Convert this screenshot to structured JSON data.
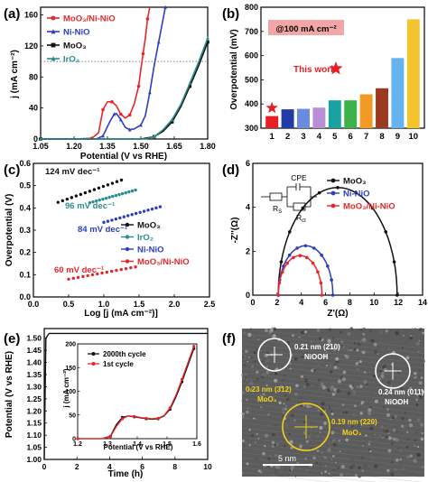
{
  "chart_data": [
    {
      "panel": "(a)",
      "type": "line",
      "xlabel": "Potential (V vs RHE)",
      "ylabel": "j (mA cm⁻²)",
      "xlim": [
        1.05,
        1.8
      ],
      "ylim": [
        0,
        170
      ],
      "xticks": [
        "1.05",
        "1.20",
        "1.35",
        "1.50",
        "1.65",
        "1.80"
      ],
      "yticks": [
        "0",
        "40",
        "80",
        "120",
        "160"
      ],
      "reference_line": 100,
      "legend_position": "top-left",
      "series": [
        {
          "name": "MoO₃/Ni-NiO",
          "color": "#e8262a",
          "marker": "circle",
          "x": [
            1.05,
            1.2,
            1.28,
            1.31,
            1.33,
            1.35,
            1.37,
            1.39,
            1.41,
            1.43,
            1.45,
            1.47,
            1.49,
            1.5,
            1.51,
            1.52,
            1.53,
            1.54
          ],
          "y": [
            0,
            0,
            1,
            8,
            38,
            48,
            48,
            43,
            32,
            27,
            31,
            45,
            68,
            90,
            110,
            130,
            155,
            170
          ]
        },
        {
          "name": "Ni-NiO",
          "color": "#2b3ec2",
          "marker": "triangle",
          "x": [
            1.05,
            1.3,
            1.33,
            1.36,
            1.38,
            1.39,
            1.41,
            1.43,
            1.45,
            1.47,
            1.5,
            1.52,
            1.54,
            1.56,
            1.58,
            1.6,
            1.61
          ],
          "y": [
            0,
            0,
            4,
            22,
            32,
            33,
            25,
            15,
            12,
            13,
            18,
            30,
            60,
            95,
            125,
            155,
            170
          ]
        },
        {
          "name": "MoO₃",
          "color": "#111111",
          "marker": "square",
          "x": [
            1.05,
            1.5,
            1.56,
            1.6,
            1.64,
            1.68,
            1.72,
            1.76,
            1.8
          ],
          "y": [
            0,
            0,
            3,
            10,
            22,
            42,
            68,
            95,
            125
          ]
        },
        {
          "name": "IrO₂",
          "color": "#2a8d8d",
          "marker": "triangle",
          "x": [
            1.05,
            1.52,
            1.56,
            1.6,
            1.64,
            1.68,
            1.72,
            1.76,
            1.8
          ],
          "y": [
            0,
            0,
            3,
            12,
            25,
            45,
            72,
            100,
            130
          ]
        }
      ]
    },
    {
      "panel": "(b)",
      "type": "bar",
      "ylabel": "Overpotential (mV)",
      "annotation": "@100 mA cm⁻²",
      "annotation_color": "#f4a6a6",
      "highlight_label": "This work",
      "ylim": [
        300,
        800
      ],
      "yticks": [
        "300",
        "400",
        "500",
        "600",
        "700",
        "800"
      ],
      "categories": [
        "1",
        "2",
        "3",
        "4",
        "5",
        "6",
        "7",
        "8",
        "9",
        "10"
      ],
      "values": [
        350,
        378,
        380,
        385,
        415,
        415,
        440,
        465,
        590,
        750
      ],
      "colors": [
        "#e81e25",
        "#243aa8",
        "#6a8be0",
        "#b98fd8",
        "#1aa1a1",
        "#3bb34a",
        "#f39a25",
        "#9a3b20",
        "#65b4ef",
        "#f4c32d"
      ]
    },
    {
      "panel": "(c)",
      "type": "scatter",
      "xlabel": "Log [j (mA cm⁻²)]",
      "ylabel": "Overpotential (V)",
      "xlim": [
        0.0,
        2.5
      ],
      "ylim": [
        0.0,
        0.6
      ],
      "xticks": [
        "0.0",
        "0.5",
        "1.0",
        "1.5",
        "2.0",
        "2.5"
      ],
      "yticks": [
        "0.0",
        "0.1",
        "0.2",
        "0.3",
        "0.4",
        "0.5",
        "0.6"
      ],
      "legend_position": "bottom-right",
      "series": [
        {
          "name": "MoO₃",
          "color": "#111111",
          "x": [
            0.35,
            1.25
          ],
          "y": [
            0.425,
            0.525
          ],
          "slope_label": "124 mV dec⁻¹"
        },
        {
          "name": "IrO₂",
          "color": "#2a8d8d",
          "x": [
            0.8,
            1.45
          ],
          "y": [
            0.423,
            0.48
          ],
          "slope_label": "96 mV dec⁻¹"
        },
        {
          "name": "Ni-NiO",
          "color": "#2b3ec2",
          "x": [
            1.0,
            1.8
          ],
          "y": [
            0.335,
            0.405
          ],
          "slope_label": "84 mV dec⁻¹"
        },
        {
          "name": "MoO₃/Ni-NiO",
          "color": "#e8262a",
          "x": [
            0.5,
            1.45
          ],
          "y": [
            0.08,
            0.135
          ],
          "slope_label": "60 mV dec⁻¹"
        }
      ]
    },
    {
      "panel": "(d)",
      "type": "line",
      "xlabel": "Z'(Ω)",
      "ylabel": "-Z''(Ω)",
      "xlim": [
        0,
        14
      ],
      "ylim": [
        0,
        6
      ],
      "xticks": [
        "0",
        "2",
        "4",
        "6",
        "8",
        "10",
        "12",
        "14"
      ],
      "yticks": [
        "0",
        "2",
        "4",
        "6"
      ],
      "circuit_labels": [
        "CPE",
        "R",
        "S",
        "R",
        "ct"
      ],
      "legend_position": "top-right",
      "series": [
        {
          "name": "MoO₃",
          "color": "#111111",
          "x_start": 2.1,
          "x_end": 11.9
        },
        {
          "name": "Ni-NiO",
          "color": "#2b3ec2",
          "x_start": 2.1,
          "x_end": 6.6
        },
        {
          "name": "MoO₃/Ni-NiO",
          "color": "#e8262a",
          "x_start": 2.1,
          "x_end": 5.7
        }
      ]
    },
    {
      "panel": "(e)",
      "type": "line",
      "xlabel": "Time (h)",
      "ylabel": "Potential (V vs RHE)",
      "xlim": [
        0,
        10
      ],
      "ylim": [
        1.0,
        1.55
      ],
      "xticks": [
        "0",
        "2",
        "4",
        "6",
        "8",
        "10"
      ],
      "yticks": [
        "1.00",
        "1.05",
        "1.10",
        "1.15",
        "1.20",
        "1.25",
        "1.30",
        "1.35",
        "1.40",
        "1.45",
        "1.50"
      ],
      "series": [
        {
          "name": "",
          "color": "#111111",
          "x": [
            0,
            0.1,
            0.3,
            10
          ],
          "y": [
            1.0,
            1.5,
            1.52,
            1.52
          ]
        }
      ],
      "inset": {
        "xlabel": "Potential (V vs RHE)",
        "ylabel": "j (mA cm⁻²)",
        "xlim": [
          1.2,
          1.6
        ],
        "ylim": [
          0,
          200
        ],
        "xticks": [
          "1.2",
          "1.3",
          "1.4",
          "1.5",
          "1.6"
        ],
        "yticks": [
          "0",
          "50",
          "100",
          "150",
          "200"
        ],
        "series": [
          {
            "name": "2000th cycle",
            "color": "#111111",
            "x": [
              1.2,
              1.28,
              1.31,
              1.33,
              1.35,
              1.37,
              1.39,
              1.41,
              1.43,
              1.45,
              1.47,
              1.49,
              1.51,
              1.53,
              1.55,
              1.57,
              1.59
            ],
            "y": [
              0,
              0,
              5,
              30,
              45,
              48,
              46,
              44,
              42,
              41,
              42,
              48,
              62,
              88,
              120,
              155,
              190
            ]
          },
          {
            "name": "1st cycle",
            "color": "#e8262a",
            "x": [
              1.2,
              1.28,
              1.31,
              1.33,
              1.35,
              1.37,
              1.39,
              1.41,
              1.43,
              1.45,
              1.47,
              1.49,
              1.51,
              1.53,
              1.55,
              1.57,
              1.59
            ],
            "y": [
              0,
              0,
              4,
              26,
              42,
              48,
              47,
              45,
              43,
              42,
              43,
              49,
              65,
              92,
              125,
              160,
              195
            ]
          }
        ]
      }
    },
    {
      "panel": "(f)",
      "type": "image",
      "scale_bar": "5 nm",
      "annotations": [
        "0.21 nm (210)",
        "NiOOH",
        "0.24 nm (011)",
        "NiOOH",
        "0.23 nm (312)",
        "MoO₃",
        "0.19 nm (220)",
        "MoO₃"
      ]
    }
  ]
}
